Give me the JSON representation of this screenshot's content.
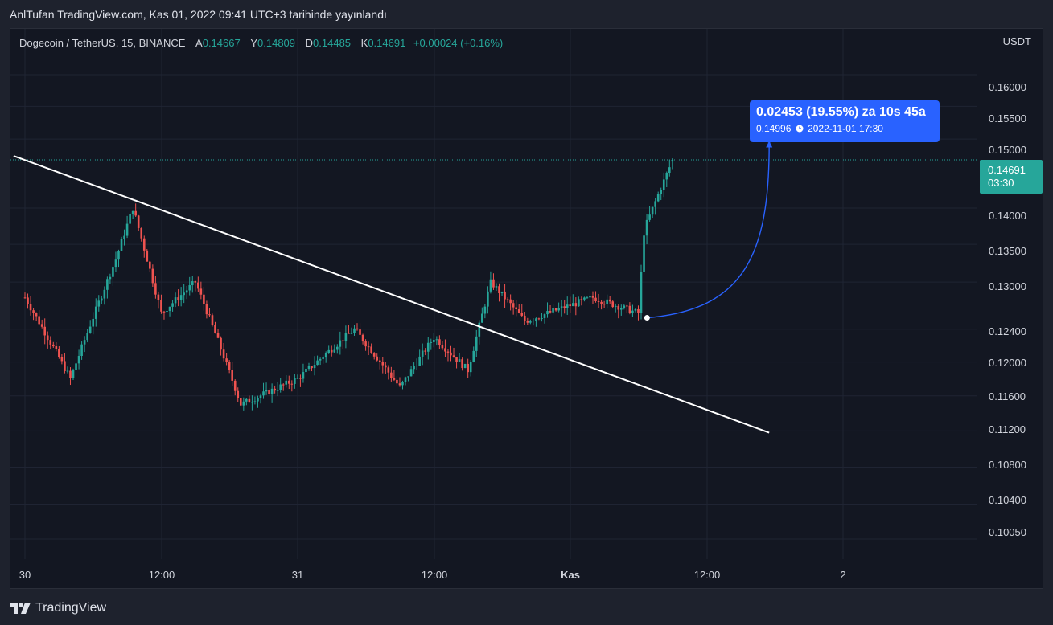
{
  "caption": "AnlTufan TradingView.com, Kas 01, 2022 09:41 UTC+3 tarihinde yayınlandı",
  "legend": {
    "symbol": "Dogecoin / TetherUS, 15, BINANCE",
    "open_key": "A",
    "open": "0.14667",
    "high_key": "Y",
    "high": "0.14809",
    "low_key": "D",
    "low": "0.14485",
    "close_key": "K",
    "close": "0.14691",
    "change": "+0.00024 (+0.16%)"
  },
  "price_axis": {
    "unit": "USDT",
    "labels": [
      "0.16000",
      "0.15500",
      "0.15000",
      "0.14000",
      "0.13500",
      "0.13000",
      "0.12400",
      "0.12000",
      "0.11600",
      "0.11200",
      "0.10800",
      "0.10400",
      "0.10050"
    ],
    "last_price": "0.14691",
    "countdown": "03:30"
  },
  "time_axis": {
    "labels": [
      {
        "text": "30",
        "bold": false
      },
      {
        "text": "12:00",
        "bold": false
      },
      {
        "text": "31",
        "bold": false
      },
      {
        "text": "12:00",
        "bold": false
      },
      {
        "text": "Kas",
        "bold": true
      },
      {
        "text": "12:00",
        "bold": false
      },
      {
        "text": "2",
        "bold": false
      }
    ]
  },
  "measure": {
    "headline": "0.02453 (19.55%) za 10s 45a",
    "target_price": "0.14996",
    "target_time": "2022-11-01  17:30",
    "clock_icon": "clock-icon"
  },
  "footer": {
    "logo_icon": "tradingview-logo-icon",
    "brand": "TradingView"
  },
  "colors": {
    "up": "#26a69a",
    "down": "#ef5350",
    "background": "#131722",
    "accent": "#2962ff",
    "trendline": "#ffffff"
  },
  "chart_data": {
    "type": "candlestick",
    "symbol": "DOGEUSDT",
    "interval": "15",
    "y_scale": "log",
    "ylim": [
      0.0985,
      0.1675
    ],
    "last_bar": {
      "open": 0.14667,
      "high": 0.14809,
      "low": 0.14485,
      "close": 0.14691
    },
    "price_path": [
      {
        "t": "2022-10-30 00:00",
        "price": 0.128
      },
      {
        "t": "2022-10-30 04:00",
        "price": 0.118
      },
      {
        "t": "2022-10-30 08:00",
        "price": 0.133
      },
      {
        "t": "2022-10-30 09:30",
        "price": 0.14
      },
      {
        "t": "2022-10-30 12:00",
        "price": 0.126
      },
      {
        "t": "2022-10-30 15:00",
        "price": 0.13
      },
      {
        "t": "2022-10-30 19:00",
        "price": 0.115
      },
      {
        "t": "2022-10-31 00:00",
        "price": 0.118
      },
      {
        "t": "2022-10-31 05:00",
        "price": 0.124
      },
      {
        "t": "2022-10-31 09:00",
        "price": 0.117
      },
      {
        "t": "2022-10-31 12:00",
        "price": 0.123
      },
      {
        "t": "2022-10-31 15:00",
        "price": 0.119
      },
      {
        "t": "2022-10-31 17:00",
        "price": 0.13
      },
      {
        "t": "2022-10-31 20:00",
        "price": 0.125
      },
      {
        "t": "2022-11-01 02:00",
        "price": 0.128
      },
      {
        "t": "2022-11-01 06:00",
        "price": 0.126
      },
      {
        "t": "2022-11-01 06:30",
        "price": 0.137
      },
      {
        "t": "2022-11-01 09:00",
        "price": 0.1469
      }
    ],
    "trendline": {
      "from": {
        "t": "2022-10-29 23:00",
        "price": 0.1475
      },
      "to": {
        "t": "2022-11-01 17:30",
        "price": 0.1118
      }
    },
    "projection": {
      "from": {
        "t": "2022-11-01 06:45",
        "price": 0.12543
      },
      "to": {
        "t": "2022-11-01 17:30",
        "price": 0.14996
      }
    },
    "annotations": [
      "0.02453 (19.55%) za 10s 45a",
      "0.14996",
      "2022-11-01  17:30"
    ]
  }
}
